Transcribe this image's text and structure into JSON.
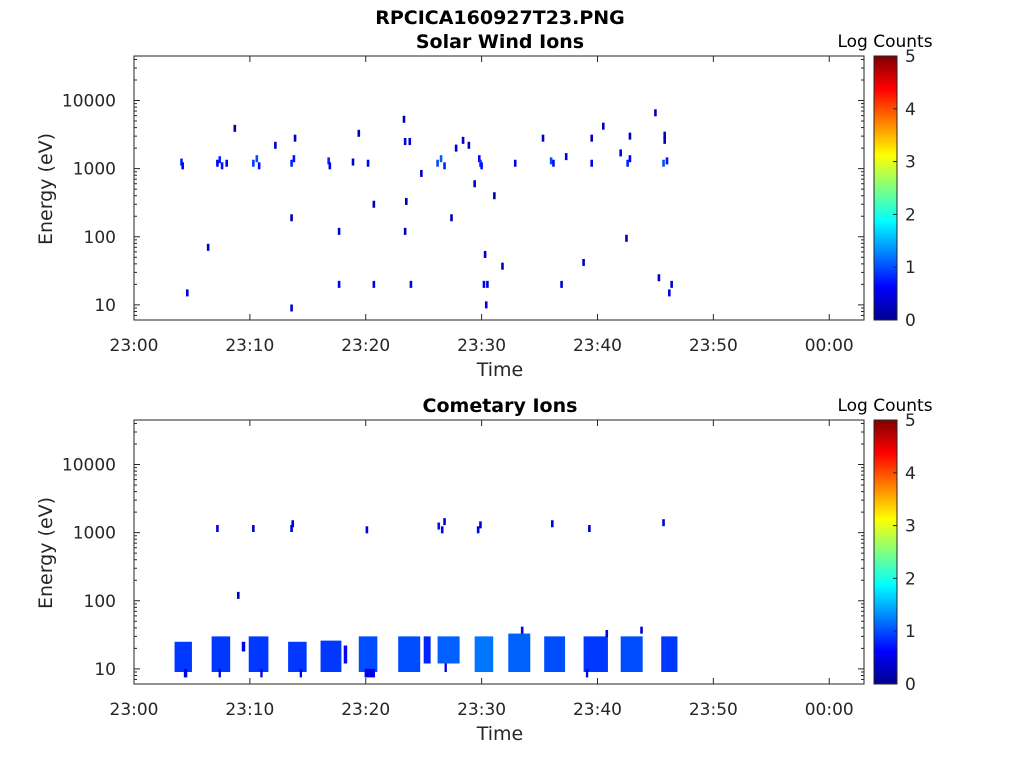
{
  "figure": {
    "title": "RPCICA160927T23.PNG"
  },
  "colors": {
    "colormap": [
      "#00008f",
      "#0000ff",
      "#0080ff",
      "#00ffff",
      "#80ff80",
      "#ffff00",
      "#ff8000",
      "#ff0000",
      "#800000"
    ],
    "axis": "#262626"
  },
  "chart_data": [
    {
      "type": "heatmap",
      "title": "Solar Wind Ions",
      "xlabel": "Time",
      "ylabel": "Energy (eV)",
      "x_ticks": [
        "23:00",
        "23:10",
        "23:20",
        "23:30",
        "23:40",
        "23:50",
        "00:00"
      ],
      "x_range_minutes": [
        0,
        63
      ],
      "y_scale": "log",
      "y_ticks": [
        "10",
        "100",
        "1000",
        "10000"
      ],
      "y_range": [
        6,
        45000
      ],
      "colorbar": {
        "label": "Log Counts",
        "ticks": [
          "0",
          "1",
          "2",
          "3",
          "4",
          "5"
        ],
        "range": [
          0,
          5
        ]
      },
      "points": [
        [
          4.1,
          1250,
          0.8
        ],
        [
          4.2,
          1100,
          0.6
        ],
        [
          4.6,
          15,
          0.5
        ],
        [
          6.4,
          70,
          0.3
        ],
        [
          7.2,
          1200,
          0.6
        ],
        [
          7.4,
          1350,
          0.8
        ],
        [
          7.6,
          1100,
          0.7
        ],
        [
          8.0,
          1200,
          0.6
        ],
        [
          8.7,
          3900,
          0.2
        ],
        [
          10.3,
          1200,
          0.9
        ],
        [
          10.6,
          1400,
          1.0
        ],
        [
          10.8,
          1100,
          0.7
        ],
        [
          12.2,
          2200,
          0.3
        ],
        [
          13.6,
          1200,
          0.8
        ],
        [
          13.8,
          1400,
          0.7
        ],
        [
          13.9,
          2800,
          0.3
        ],
        [
          13.6,
          9,
          0.4
        ],
        [
          13.6,
          190,
          0.2
        ],
        [
          16.8,
          1300,
          0.8
        ],
        [
          16.9,
          1100,
          0.6
        ],
        [
          17.7,
          20,
          0.5
        ],
        [
          17.7,
          120,
          0.3
        ],
        [
          18.9,
          1250,
          0.3
        ],
        [
          19.4,
          3300,
          0.2
        ],
        [
          20.2,
          1200,
          0.6
        ],
        [
          20.7,
          20,
          0.5
        ],
        [
          20.7,
          300,
          0.2
        ],
        [
          23.3,
          5300,
          0.2
        ],
        [
          23.4,
          2500,
          0.4
        ],
        [
          23.5,
          330,
          0.2
        ],
        [
          23.4,
          120,
          0.2
        ],
        [
          23.8,
          2500,
          0.4
        ],
        [
          23.9,
          20,
          0.5
        ],
        [
          24.8,
          850,
          0.3
        ],
        [
          26.2,
          1200,
          1.0
        ],
        [
          26.5,
          1400,
          1.1
        ],
        [
          26.8,
          1100,
          0.8
        ],
        [
          27.4,
          190,
          0.2
        ],
        [
          27.8,
          2000,
          0.3
        ],
        [
          28.4,
          2600,
          0.3
        ],
        [
          28.9,
          2200,
          0.3
        ],
        [
          29.4,
          600,
          0.2
        ],
        [
          29.8,
          1400,
          0.6
        ],
        [
          29.9,
          1200,
          0.9
        ],
        [
          30.0,
          1100,
          0.7
        ],
        [
          30.2,
          20,
          0.5
        ],
        [
          30.3,
          55,
          0.3
        ],
        [
          30.4,
          10,
          0.5
        ],
        [
          30.5,
          20,
          0.4
        ],
        [
          31.1,
          400,
          0.2
        ],
        [
          31.8,
          37,
          0.3
        ],
        [
          32.9,
          1200,
          0.5
        ],
        [
          35.3,
          2800,
          0.3
        ],
        [
          36.0,
          1300,
          1.0
        ],
        [
          36.2,
          1200,
          0.7
        ],
        [
          36.9,
          20,
          0.4
        ],
        [
          37.3,
          1500,
          0.4
        ],
        [
          38.8,
          42,
          0.3
        ],
        [
          39.5,
          2800,
          0.3
        ],
        [
          39.5,
          1200,
          0.6
        ],
        [
          40.5,
          4200,
          0.2
        ],
        [
          42.0,
          1700,
          0.4
        ],
        [
          42.6,
          1200,
          0.8
        ],
        [
          42.8,
          1400,
          0.6
        ],
        [
          42.8,
          3000,
          0.2
        ],
        [
          42.5,
          95,
          0.3
        ],
        [
          45.0,
          6600,
          0.2
        ],
        [
          45.3,
          25,
          0.3
        ],
        [
          45.7,
          1200,
          1.0
        ],
        [
          45.8,
          2600,
          0.3
        ],
        [
          45.8,
          3100,
          0.3
        ],
        [
          46.0,
          1300,
          0.7
        ],
        [
          46.2,
          15,
          0.5
        ],
        [
          46.4,
          20,
          0.4
        ]
      ]
    },
    {
      "type": "heatmap",
      "title": "Cometary Ions",
      "xlabel": "Time",
      "ylabel": "Energy (eV)",
      "x_ticks": [
        "23:00",
        "23:10",
        "23:20",
        "23:30",
        "23:40",
        "23:50",
        "00:00"
      ],
      "x_range_minutes": [
        0,
        63
      ],
      "y_scale": "log",
      "y_ticks": [
        "10",
        "100",
        "1000",
        "10000"
      ],
      "y_range": [
        6,
        45000
      ],
      "colorbar": {
        "label": "Log Counts",
        "ticks": [
          "0",
          "1",
          "2",
          "3",
          "4",
          "5"
        ],
        "range": [
          0,
          5
        ]
      },
      "points": [
        [
          7.2,
          1150,
          0.5
        ],
        [
          10.3,
          1150,
          0.4
        ],
        [
          13.6,
          1150,
          0.5
        ],
        [
          13.7,
          1350,
          0.4
        ],
        [
          20.1,
          1100,
          0.4
        ],
        [
          26.3,
          1250,
          0.7
        ],
        [
          26.6,
          1100,
          0.6
        ],
        [
          26.8,
          1450,
          0.4
        ],
        [
          29.7,
          1100,
          0.5
        ],
        [
          29.9,
          1300,
          0.4
        ],
        [
          36.1,
          1350,
          0.5
        ],
        [
          39.3,
          1150,
          0.3
        ],
        [
          45.7,
          1400,
          0.4
        ],
        [
          9.0,
          120,
          0.3
        ],
        [
          43.8,
          37,
          0.4
        ],
        [
          33.5,
          37,
          0.5
        ],
        [
          40.8,
          33,
          0.4
        ]
      ],
      "bands": [
        {
          "x": [
            3.5,
            5.0
          ],
          "y": [
            9,
            25
          ],
          "level": 0.9
        },
        {
          "x": [
            4.3,
            4.6
          ],
          "y": [
            7.5,
            10
          ],
          "level": 0.5
        },
        {
          "x": [
            6.7,
            8.3
          ],
          "y": [
            9,
            30
          ],
          "level": 0.9
        },
        {
          "x": [
            7.3,
            7.5
          ],
          "y": [
            7.5,
            10
          ],
          "level": 0.5
        },
        {
          "x": [
            9.3,
            9.6
          ],
          "y": [
            18,
            25
          ],
          "level": 0.6
        },
        {
          "x": [
            9.9,
            11.6
          ],
          "y": [
            9,
            30
          ],
          "level": 0.9
        },
        {
          "x": [
            10.9,
            11.1
          ],
          "y": [
            7.5,
            10
          ],
          "level": 0.5
        },
        {
          "x": [
            13.3,
            14.9
          ],
          "y": [
            9,
            25
          ],
          "level": 0.9
        },
        {
          "x": [
            14.3,
            14.5
          ],
          "y": [
            7.5,
            10
          ],
          "level": 0.5
        },
        {
          "x": [
            16.1,
            17.9
          ],
          "y": [
            9,
            26
          ],
          "level": 0.9
        },
        {
          "x": [
            18.1,
            18.4
          ],
          "y": [
            12,
            22
          ],
          "level": 0.6
        },
        {
          "x": [
            19.4,
            21.0
          ],
          "y": [
            9,
            30
          ],
          "level": 1.0
        },
        {
          "x": [
            19.9,
            20.8
          ],
          "y": [
            7.5,
            10
          ],
          "level": 0.5
        },
        {
          "x": [
            22.8,
            24.7
          ],
          "y": [
            9,
            30
          ],
          "level": 1.0
        },
        {
          "x": [
            25.0,
            25.6
          ],
          "y": [
            12,
            30
          ],
          "level": 0.8
        },
        {
          "x": [
            26.2,
            28.1
          ],
          "y": [
            12,
            30
          ],
          "level": 1.1
        },
        {
          "x": [
            26.8,
            27.0
          ],
          "y": [
            9,
            12
          ],
          "level": 0.5
        },
        {
          "x": [
            29.4,
            31.0
          ],
          "y": [
            9,
            30
          ],
          "level": 1.2
        },
        {
          "x": [
            32.3,
            34.2
          ],
          "y": [
            9,
            33
          ],
          "level": 1.1
        },
        {
          "x": [
            35.4,
            37.2
          ],
          "y": [
            9,
            30
          ],
          "level": 1.0
        },
        {
          "x": [
            38.8,
            40.9
          ],
          "y": [
            9,
            30
          ],
          "level": 0.9
        },
        {
          "x": [
            39.0,
            39.2
          ],
          "y": [
            7.5,
            10
          ],
          "level": 0.5
        },
        {
          "x": [
            42.0,
            43.9
          ],
          "y": [
            9,
            30
          ],
          "level": 1.0
        },
        {
          "x": [
            45.5,
            46.9
          ],
          "y": [
            9,
            30
          ],
          "level": 0.9
        }
      ]
    }
  ]
}
